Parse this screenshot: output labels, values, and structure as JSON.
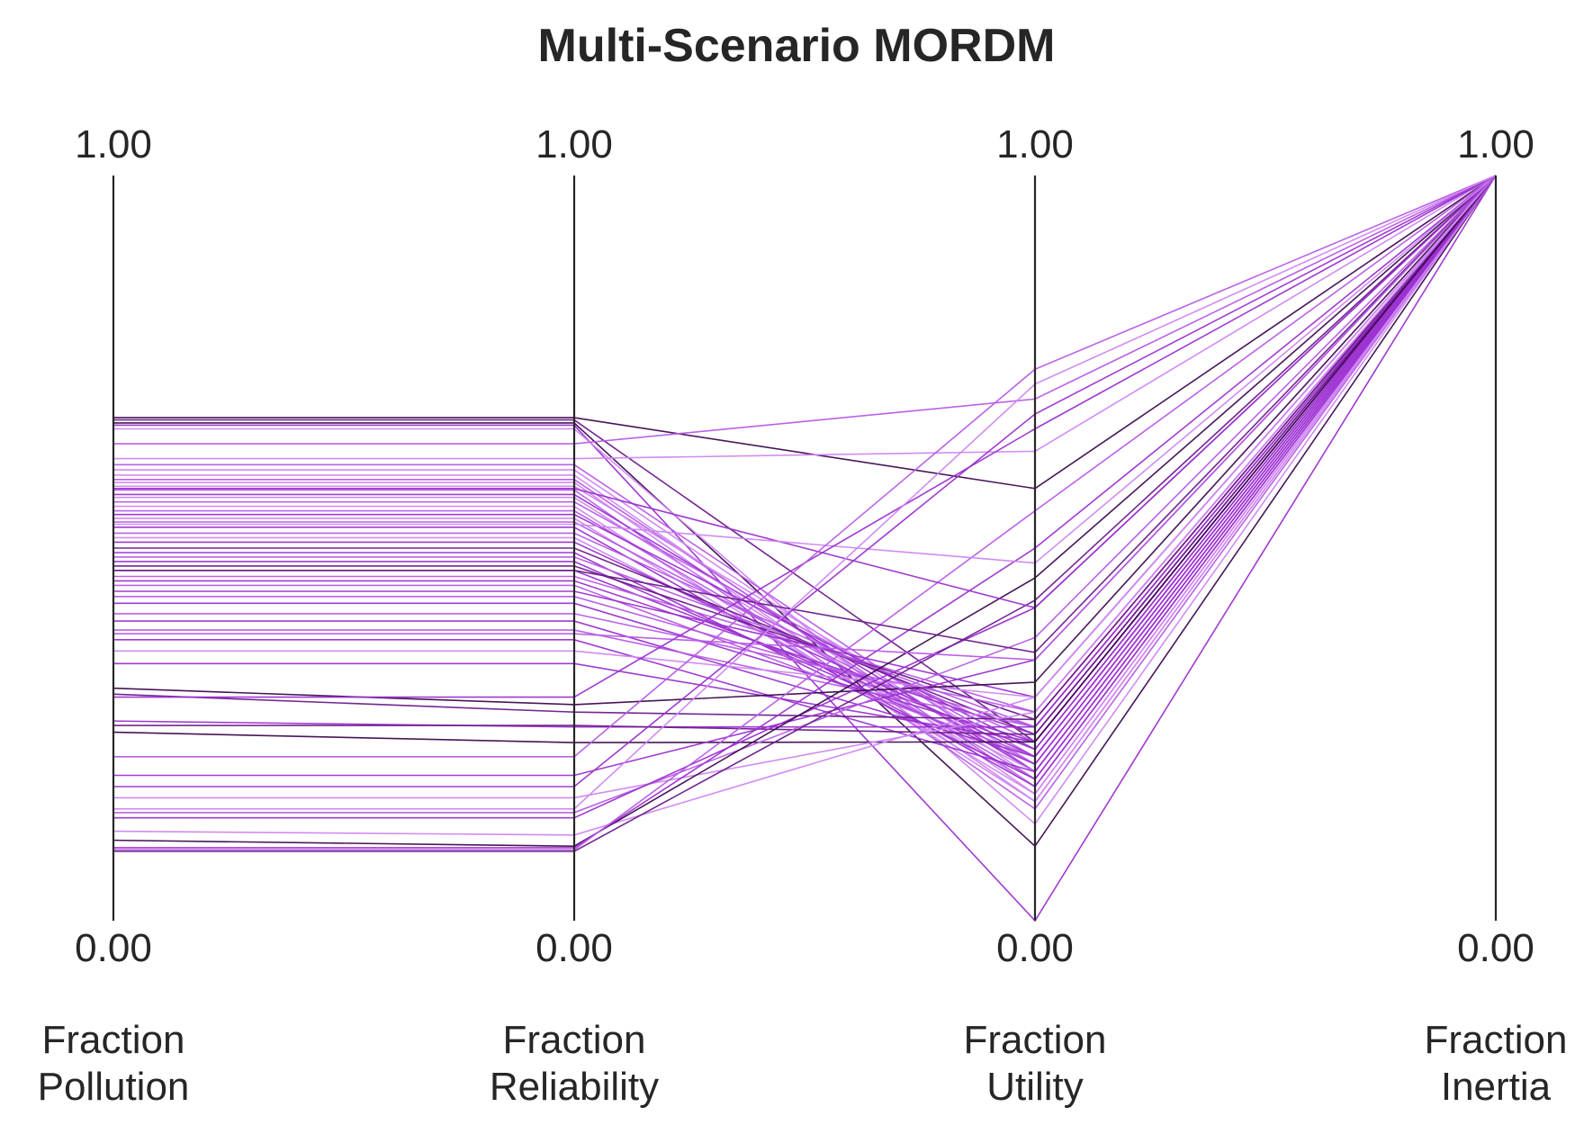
{
  "chart_data": {
    "type": "parallel_coordinates",
    "title": "Multi-Scenario MORDM",
    "axes": [
      {
        "name": "Fraction Pollution",
        "label_lines": [
          "Fraction",
          "Pollution"
        ],
        "max_label": "1.00",
        "min_label": "0.00",
        "range": [
          0,
          1
        ]
      },
      {
        "name": "Fraction Reliability",
        "label_lines": [
          "Fraction",
          "Reliability"
        ],
        "max_label": "1.00",
        "min_label": "0.00",
        "range": [
          0,
          1
        ]
      },
      {
        "name": "Fraction Utility",
        "label_lines": [
          "Fraction",
          "Utility"
        ],
        "max_label": "1.00",
        "min_label": "0.00",
        "range": [
          0,
          1
        ]
      },
      {
        "name": "Fraction Inertia",
        "label_lines": [
          "Fraction",
          "Inertia"
        ],
        "max_label": "1.00",
        "min_label": "0.00",
        "range": [
          0,
          1
        ]
      }
    ],
    "colors": [
      "#3d0a4f",
      "#6a1b8a",
      "#9b30d0",
      "#b75ae6",
      "#cf86f2"
    ],
    "lines": [
      {
        "values": [
          0.675,
          0.675,
          0.58,
          1.0
        ],
        "color": "#3d0a4f"
      },
      {
        "values": [
          0.672,
          0.672,
          0.24,
          1.0
        ],
        "color": "#6a1b8a"
      },
      {
        "values": [
          0.668,
          0.668,
          0.1,
          1.0
        ],
        "color": "#3d0a4f"
      },
      {
        "values": [
          0.665,
          0.665,
          0.0,
          1.0
        ],
        "color": "#9b30d0"
      },
      {
        "values": [
          0.66,
          0.66,
          0.13,
          1.0
        ],
        "color": "#cf86f2"
      },
      {
        "values": [
          0.612,
          0.612,
          0.2,
          1.0
        ],
        "color": "#b75ae6"
      },
      {
        "values": [
          0.605,
          0.605,
          0.19,
          1.0
        ],
        "color": "#cf86f2"
      },
      {
        "values": [
          0.598,
          0.598,
          0.17,
          1.0
        ],
        "color": "#cf86f2"
      },
      {
        "values": [
          0.592,
          0.592,
          0.18,
          1.0
        ],
        "color": "#b75ae6"
      },
      {
        "values": [
          0.588,
          0.588,
          0.16,
          1.0
        ],
        "color": "#cf86f2"
      },
      {
        "values": [
          0.583,
          0.583,
          0.21,
          1.0
        ],
        "color": "#cf86f2"
      },
      {
        "values": [
          0.578,
          0.578,
          0.15,
          1.0
        ],
        "color": "#b75ae6"
      },
      {
        "values": [
          0.572,
          0.572,
          0.2,
          1.0
        ],
        "color": "#9b30d0"
      },
      {
        "values": [
          0.568,
          0.568,
          0.18,
          1.0
        ],
        "color": "#cf86f2"
      },
      {
        "values": [
          0.562,
          0.562,
          0.22,
          1.0
        ],
        "color": "#b75ae6"
      },
      {
        "values": [
          0.556,
          0.556,
          0.16,
          1.0
        ],
        "color": "#cf86f2"
      },
      {
        "values": [
          0.55,
          0.55,
          0.19,
          1.0
        ],
        "color": "#b75ae6"
      },
      {
        "values": [
          0.545,
          0.545,
          0.23,
          1.0
        ],
        "color": "#9b30d0"
      },
      {
        "values": [
          0.54,
          0.54,
          0.17,
          1.0
        ],
        "color": "#cf86f2"
      },
      {
        "values": [
          0.535,
          0.535,
          0.21,
          1.0
        ],
        "color": "#b75ae6"
      },
      {
        "values": [
          0.528,
          0.528,
          0.18,
          1.0
        ],
        "color": "#9b30d0"
      },
      {
        "values": [
          0.52,
          0.52,
          0.24,
          1.0
        ],
        "color": "#b75ae6"
      },
      {
        "values": [
          0.514,
          0.514,
          0.2,
          1.0
        ],
        "color": "#cf86f2"
      },
      {
        "values": [
          0.508,
          0.508,
          0.22,
          1.0
        ],
        "color": "#9b30d0"
      },
      {
        "values": [
          0.5,
          0.5,
          0.25,
          1.0
        ],
        "color": "#6a1b8a"
      },
      {
        "values": [
          0.494,
          0.494,
          0.19,
          1.0
        ],
        "color": "#9b30d0"
      },
      {
        "values": [
          0.488,
          0.488,
          0.26,
          1.0
        ],
        "color": "#b75ae6"
      },
      {
        "values": [
          0.482,
          0.482,
          0.21,
          1.0
        ],
        "color": "#9b30d0"
      },
      {
        "values": [
          0.476,
          0.476,
          0.27,
          1.0
        ],
        "color": "#6a1b8a"
      },
      {
        "values": [
          0.47,
          0.47,
          0.23,
          1.0
        ],
        "color": "#9b30d0"
      },
      {
        "values": [
          0.462,
          0.462,
          0.28,
          1.0
        ],
        "color": "#b75ae6"
      },
      {
        "values": [
          0.456,
          0.456,
          0.25,
          1.0
        ],
        "color": "#9b30d0"
      },
      {
        "values": [
          0.45,
          0.45,
          0.22,
          1.0
        ],
        "color": "#b75ae6"
      },
      {
        "values": [
          0.442,
          0.442,
          0.3,
          1.0
        ],
        "color": "#9b30d0"
      },
      {
        "values": [
          0.435,
          0.435,
          0.26,
          1.0
        ],
        "color": "#b75ae6"
      },
      {
        "values": [
          0.426,
          0.426,
          0.24,
          1.0
        ],
        "color": "#9b30d0"
      },
      {
        "values": [
          0.412,
          0.412,
          0.28,
          1.0
        ],
        "color": "#b75ae6"
      },
      {
        "values": [
          0.402,
          0.402,
          0.22,
          1.0
        ],
        "color": "#9b30d0"
      },
      {
        "values": [
          0.39,
          0.39,
          0.26,
          1.0
        ],
        "color": "#b75ae6"
      },
      {
        "values": [
          0.377,
          0.377,
          0.2,
          1.0
        ],
        "color": "#9b30d0"
      },
      {
        "values": [
          0.362,
          0.362,
          0.3,
          1.0
        ],
        "color": "#cf86f2"
      },
      {
        "values": [
          0.345,
          0.345,
          0.24,
          1.0
        ],
        "color": "#9b30d0"
      },
      {
        "values": [
          0.312,
          0.29,
          0.32,
          1.0
        ],
        "color": "#3d0a4f"
      },
      {
        "values": [
          0.304,
          0.28,
          0.27,
          1.0
        ],
        "color": "#6a1b8a"
      },
      {
        "values": [
          0.268,
          0.26,
          0.26,
          1.0
        ],
        "color": "#9b30d0"
      },
      {
        "values": [
          0.262,
          0.262,
          0.25,
          1.0
        ],
        "color": "#6a1b8a"
      },
      {
        "values": [
          0.253,
          0.239,
          0.24,
          1.0
        ],
        "color": "#3d0a4f"
      },
      {
        "values": [
          0.195,
          0.195,
          0.35,
          1.0
        ],
        "color": "#9b30d0"
      },
      {
        "values": [
          0.165,
          0.165,
          0.28,
          1.0
        ],
        "color": "#cf86f2"
      },
      {
        "values": [
          0.145,
          0.145,
          0.38,
          1.0
        ],
        "color": "#b75ae6"
      },
      {
        "values": [
          0.138,
          0.138,
          0.42,
          1.0
        ],
        "color": "#9b30d0"
      },
      {
        "values": [
          0.12,
          0.115,
          0.3,
          1.0
        ],
        "color": "#cf86f2"
      },
      {
        "values": [
          0.108,
          0.1,
          0.46,
          1.0
        ],
        "color": "#3d0a4f"
      },
      {
        "values": [
          0.098,
          0.098,
          0.5,
          1.0
        ],
        "color": "#9b30d0"
      },
      {
        "values": [
          0.095,
          0.095,
          0.55,
          1.0
        ],
        "color": "#b75ae6"
      },
      {
        "values": [
          0.093,
          0.093,
          0.43,
          1.0
        ],
        "color": "#6a1b8a"
      },
      {
        "values": [
          0.64,
          0.64,
          0.7,
          1.0
        ],
        "color": "#b75ae6"
      },
      {
        "values": [
          0.62,
          0.62,
          0.63,
          1.0
        ],
        "color": "#cf86f2"
      },
      {
        "values": [
          0.58,
          0.58,
          0.42,
          1.0
        ],
        "color": "#9b30d0"
      },
      {
        "values": [
          0.532,
          0.532,
          0.48,
          1.0
        ],
        "color": "#cf86f2"
      },
      {
        "values": [
          0.47,
          0.47,
          0.36,
          1.0
        ],
        "color": "#6a1b8a"
      },
      {
        "values": [
          0.385,
          0.385,
          0.35,
          1.0
        ],
        "color": "#b75ae6"
      },
      {
        "values": [
          0.3,
          0.3,
          0.66,
          1.0
        ],
        "color": "#9b30d0"
      },
      {
        "values": [
          0.22,
          0.22,
          0.74,
          1.0
        ],
        "color": "#b75ae6"
      },
      {
        "values": [
          0.18,
          0.18,
          0.68,
          1.0
        ],
        "color": "#9b30d0"
      },
      {
        "values": [
          0.15,
          0.15,
          0.72,
          1.0
        ],
        "color": "#cf86f2"
      }
    ]
  }
}
